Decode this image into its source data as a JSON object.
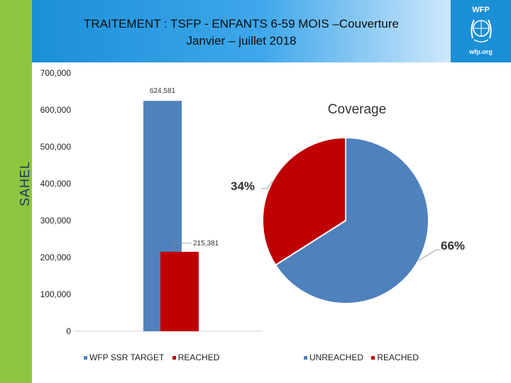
{
  "sidebar": {
    "region_label": "SAHEL"
  },
  "header": {
    "title_line1": "TRAITEMENT : TSFP - ENFANTS 6-59 MOIS –Couverture",
    "title_line2": "Janvier – juillet 2018"
  },
  "logo": {
    "top_text": "WFP",
    "bottom_text": "wfp.org",
    "emblem_icon": "wfp-wheat-emblem-icon"
  },
  "colors": {
    "target": "#4f81bd",
    "reached": "#c00000",
    "unreached": "#4f81bd",
    "side_band": "#8dc63f"
  },
  "chart_data": [
    {
      "type": "bar",
      "categories": [
        ""
      ],
      "series": [
        {
          "name": "WFP SSR TARGET",
          "values": [
            624581
          ],
          "label": "624,581"
        },
        {
          "name": "REACHED",
          "values": [
            215381
          ],
          "label": "215,381"
        }
      ],
      "ylim": [
        0,
        700000
      ],
      "yticks": [
        "0",
        "100,000",
        "200,000",
        "300,000",
        "400,000",
        "500,000",
        "600,000",
        "700,000"
      ],
      "ytick_values": [
        0,
        100000,
        200000,
        300000,
        400000,
        500000,
        600000,
        700000
      ],
      "grid": false,
      "legend": "bottom"
    },
    {
      "type": "pie",
      "title": "Coverage",
      "labels": [
        "UNREACHED",
        "REACHED"
      ],
      "values": [
        66,
        34
      ],
      "value_labels": [
        "66%",
        "34%"
      ],
      "legend": "bottom"
    }
  ]
}
